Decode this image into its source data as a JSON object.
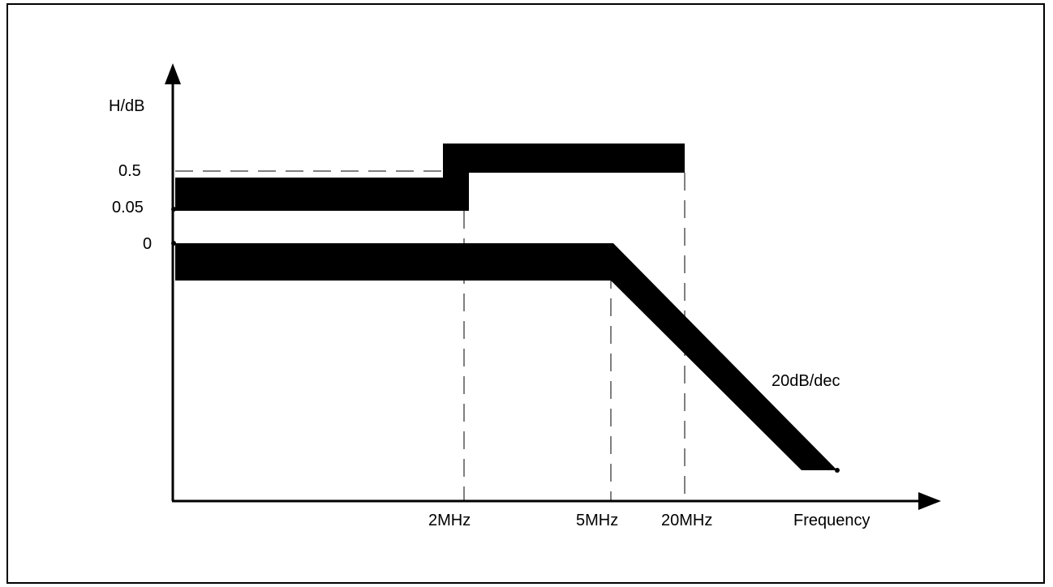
{
  "y_axis": {
    "label": "H/dB",
    "ticks": [
      "0.5",
      "0.05",
      "0"
    ]
  },
  "x_axis": {
    "label": "Frequency",
    "ticks": [
      "2MHz",
      "5MHz",
      "20MHz"
    ]
  },
  "annotation": "20dB/dec",
  "colors": {
    "band": "#000000",
    "axis": "#000000",
    "guide": "#000000",
    "background": "#ffffff"
  }
}
